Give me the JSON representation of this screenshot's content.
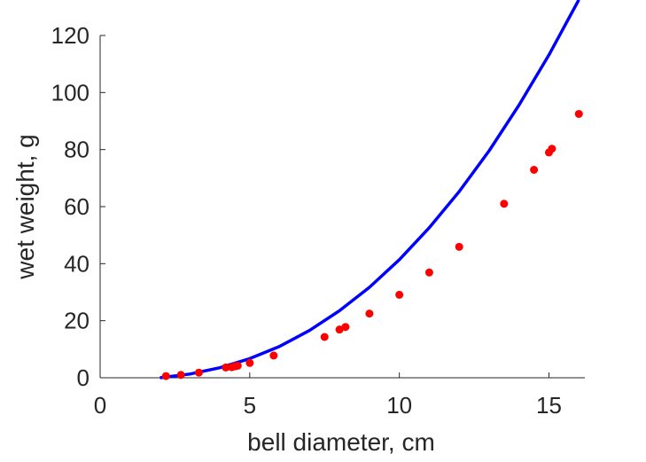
{
  "chart_data": {
    "type": "scatter",
    "xlabel": "bell diameter, cm",
    "ylabel": "wet weight, g",
    "xlim": [
      0,
      16.2
    ],
    "ylim": [
      0,
      120
    ],
    "xticks": [
      0,
      5,
      10,
      15
    ],
    "yticks": [
      0,
      20,
      40,
      60,
      80,
      100,
      120
    ],
    "x_tick_labels": [
      "0",
      "5",
      "10",
      "15"
    ],
    "y_tick_labels": [
      "0",
      "20",
      "40",
      "60",
      "80",
      "100",
      "120"
    ],
    "grid": false,
    "series": [
      {
        "kind": "scatter",
        "color": "#ff0000",
        "points": [
          [
            2.2,
            0.6
          ],
          [
            2.7,
            1.0
          ],
          [
            3.3,
            1.8
          ],
          [
            4.2,
            3.6
          ],
          [
            4.4,
            3.7
          ],
          [
            4.5,
            4.0
          ],
          [
            4.6,
            4.2
          ],
          [
            5.0,
            5.2
          ],
          [
            5.8,
            7.8
          ],
          [
            7.5,
            14.3
          ],
          [
            8.0,
            16.9
          ],
          [
            8.2,
            17.8
          ],
          [
            9.0,
            22.5
          ],
          [
            10.0,
            29.1
          ],
          [
            11.0,
            36.9
          ],
          [
            12.0,
            45.9
          ],
          [
            13.5,
            61.0
          ],
          [
            14.5,
            72.9
          ],
          [
            15.0,
            79.0
          ],
          [
            15.1,
            80.3
          ],
          [
            16.0,
            92.5
          ]
        ]
      },
      {
        "kind": "line",
        "color": "#0000ff",
        "x": [
          2.0,
          3.0,
          4.0,
          5.0,
          6.0,
          7.0,
          8.0,
          9.0,
          10.0,
          11.0,
          12.0,
          13.0,
          14.0,
          15.0,
          16.0
        ],
        "y": [
          0.0,
          1.3,
          3.5,
          6.7,
          11.0,
          16.6,
          23.5,
          31.7,
          41.4,
          52.6,
          65.3,
          79.6,
          95.6,
          113.2,
          132.5
        ]
      }
    ]
  }
}
